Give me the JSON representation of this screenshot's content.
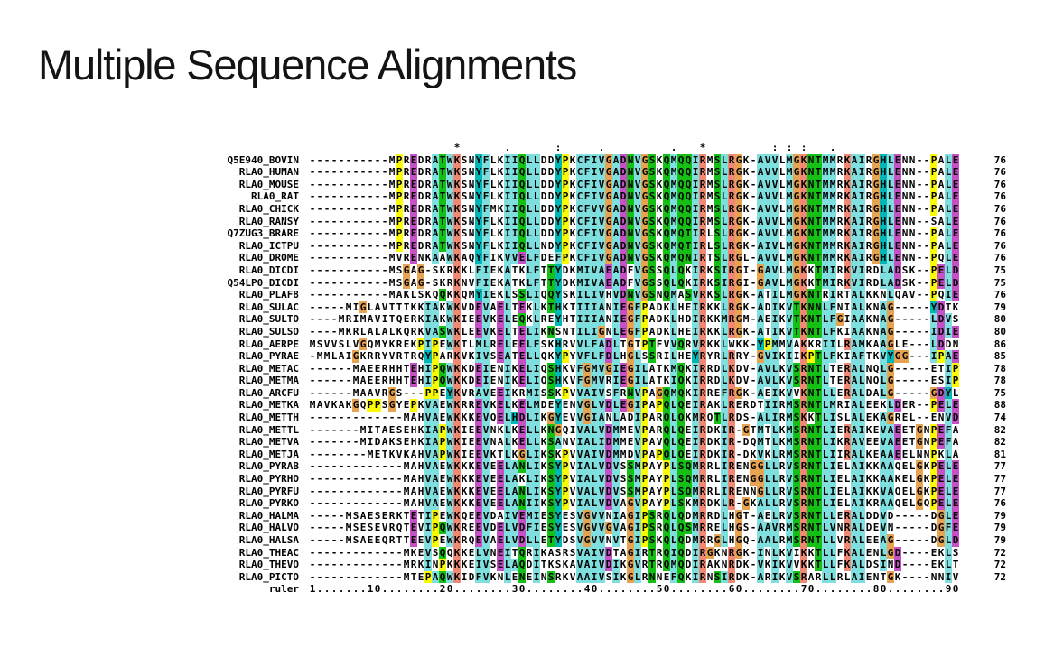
{
  "title": "Multiple Sequence Alignments",
  "alignment": {
    "columns": 90,
    "consensus_line": "                    *      .      :     .         .   *         : : :   .                 ",
    "ruler_label": "ruler",
    "ruler_line": "1.......10........20........30........40........50........60........70........80........90",
    "palette": {
      "hydrophobic": "#7FDFDF",
      "aromatic": "#00B7B7",
      "positive": "#F08873",
      "negative": "#C750C7",
      "polar": "#15C015",
      "glycine": "#E8A351",
      "proline": "#FCFC00",
      "text": "#000000"
    },
    "thresholds": {
      "hydrophobic": 0.5,
      "positive": 0.65,
      "negative": 0.4,
      "polar": 0.4
    },
    "rows": [
      {
        "name": "Q5E940_BOVIN",
        "seq": "-----------MPREDRATWKSNYFLKIIQLLDDYPKCFIVGADNVGSKQMQQIRMSLRGK-AVVLMGKNTMMRKAIRGHLENN--PALE",
        "count": "76"
      },
      {
        "name": "RLA0_HUMAN",
        "seq": "-----------MPREDRATWKSNYFLKIIQLLDDYPKCFIVGADNVGSKQMQQIRMSLRGK-AVVLMGKNTMMRKAIRGHLENN--PALE",
        "count": "76"
      },
      {
        "name": "RLA0_MOUSE",
        "seq": "-----------MPREDRATWKSNYFLKIIQLLDDYPKCFIVGADNVGSKQMQQIRMSLRGK-AVVLMGKNTMMRKAIRGHLENN--PALE",
        "count": "76"
      },
      {
        "name": "RLA0_RAT",
        "seq": "-----------MPREDRATWKSNYFLKIIQLLDDYPKCFIVGADNVGSKQMQQIRMSLRGK-AVVLMGKNTMMRKAIRGHLENN--PALE",
        "count": "76"
      },
      {
        "name": "RLA0_CHICK",
        "seq": "-----------MPREDRATWKSNYFMKIIQLLDDYPKCFVVGADNVGSKQMQQIRMSLRGK-AVVLMGKNTMMRKAIRGHLENN--PALE",
        "count": "76"
      },
      {
        "name": "RLA0_RANSY",
        "seq": "-----------MPREDRATWKSNYFLKIIQLLDDYPKCFIVGADNVGSKQMQQIRMSLRGK-AVVLMGKNTMMRKAIRGHLENN--SALE",
        "count": "76"
      },
      {
        "name": "Q7ZUG3_BRARE",
        "seq": "-----------MPREDRATWKSNYFLKIIQLLDDYPKCFIVGADNVGSKQMQTIRLSLRGK-AVVLMGKNTMMRKAIRGHLENN--PALE",
        "count": "76"
      },
      {
        "name": "RLA0_ICTPU",
        "seq": "-----------MPREDRATWKSNYFLKIIQLLNDYPKCFIVGADNVGSKQMQTIRLSLRGK-AIVLMGKNTMMRKAIRGHLENN--PALE",
        "count": "76"
      },
      {
        "name": "RLA0_DROME",
        "seq": "-----------MVRENKAAWKAQYFIKVVELFDEFPKCFIVGADNVGSKQMQNIRTSLRGL-AVVLMGKNTMMRKAIRGHLENN--PQLE",
        "count": "76"
      },
      {
        "name": "RLA0_DICDI",
        "seq": "-----------MSGAG-SKRKKLFIEKATKLFTTYDKMIVAEADFVGSSQLQKIRKSIRGI-GAVLMGKKTMIRKVIRDLADSK--PELD",
        "count": "75"
      },
      {
        "name": "Q54LP0_DICDI",
        "seq": "-----------MSGAG-SKRKNVFIEKATKLFTTYDKMIVAEADFVGSSQLQKIRKSIRGI-GAVLMGKKTMIRKVIRDLADSK--PELD",
        "count": "75"
      },
      {
        "name": "RLA0_PLAF8",
        "seq": "-----------MAKLSKQQKKQMYIEKLSSLIQQYSKILIVHVDNVGSNQMASVRKSLRGK-ATILMGKNTRIRTALKKNLQAV--PQIE",
        "count": "76"
      },
      {
        "name": "RLA0_SULAC",
        "seq": "-----MIGLAVTTTKKIAKWKVDEVAELTEKLKTHKTIIIANIEGFPADKLHEIRKKLRGK-ADIKVTKNNLFNIALKNAG-----YDTK",
        "count": "79"
      },
      {
        "name": "RLA0_SULTO",
        "seq": "----MRIMAVITQERKIAKWKIEEVKELEQKLREYHTIIIANIEGFPADKLHDIRKKMRGM-AEIKVTKNTLFGIAAKNAG-----LDVS",
        "count": "80"
      },
      {
        "name": "RLA0_SULSO",
        "seq": "----MKRLALALKQRKVASWKLEEVKELTELIKNSNTILIGNLEGFPADKLHEIRKKLRGK-ATIKVTKNTLFKIAAKNAG-----IDIE",
        "count": "80"
      },
      {
        "name": "RLA0_AERPE",
        "seq": "MSVVSLVGQMYKREKPIPEWKTLMLRELEELFSKHRVVLFADLTGTPTFVVQRVRKKLWKK-YPMMVAKKRIILRAMKAAGLE---LDDN",
        "count": "86"
      },
      {
        "name": "RLA0_PYRAE",
        "seq": "-MMLAIGKRRYVRTRQYPARKVKIVSEATELLQKYPYVFLFDLHGLSSRILHEYRYRLRRY-GVIKIIKPTLFKIAFTKVYGG---IPAE",
        "count": "85"
      },
      {
        "name": "RLA0_METAC",
        "seq": "------MAEERHHTEHIPQWKKDEIENIKELIQSHKVFGMVGIEGILATKMQKIRRDLKDV-AVLKVSRNTLTERALNQLG-----ETIP",
        "count": "78"
      },
      {
        "name": "RLA0_METMA",
        "seq": "------MAEERHHTEHIPQWKKDEIENIKELIQSHKVFGMVRIEGILATKIQKIRRDLKDV-AVLKVSRNTLTERALNQLG-----ESIP",
        "count": "78"
      },
      {
        "name": "RLA0_ARCFU",
        "seq": "------MAAVRGS---PPEYKVRAVEEIKRMISSKPVVAIVSFRNVPAGQMQKIRREFRGK-AEIKVVKNTLLERALDALG-----GDYL",
        "count": "75"
      },
      {
        "name": "RLA0_METKA",
        "seq": "MAVKAKGQPPSGYEPKVAEWKRREVKELKELMDEYENVGLVDLEGIPAPQLQEIRAKLRERDTIIRMSRNTLMRIALEEKLDER--PELE",
        "count": "88"
      },
      {
        "name": "RLA0_METTH",
        "seq": "-------------MAHVAEWKKKEVQELHDLIKGYEVVGIANLADIPARQLQKMRQTLRDS-ALIRMSKKTLISLALEKAGREL--ENVD",
        "count": "74"
      },
      {
        "name": "RLA0_METTL",
        "seq": "-------MITAESEHKIAPWKIEEVNKLKELLKNGQIVALVDMMEVPARQLQEIRDKIR-GTMTLKMSRNTLIERAIKEVAEETGNPEFA",
        "count": "82"
      },
      {
        "name": "RLA0_METVA",
        "seq": "-------MIDAKSEHKIAPWKIEEVNALKELLKSANVIALIDMMEVPAVQLQEIRDKIR-DQMTLKMSRNTLIKRAVEEVAEETGNPEFA",
        "count": "82"
      },
      {
        "name": "RLA0_METJA",
        "seq": "--------METKVKAHVAPWKIEEVKTLKGLIKSKPVVAIVDMMDVPAPQLQEIRDKIR-DKVKLRMSRNTLIIRALKEAAEELNNPKLA",
        "count": "81"
      },
      {
        "name": "RLA0_PYRAB",
        "seq": "-------------MAHVAEWKKKEVEELANLIKSYPVIALVDVSSMPAYPLSQMRRLIRENGGLLRVSRNTLIELAIKKAAQELGKPELE",
        "count": "77"
      },
      {
        "name": "RLA0_PYRHO",
        "seq": "-------------MAHVAEWKKKEVEELAKLIKSYPVIALVDVSSMPAYPLSQMRRLIRENGGLLRVSRNTLIELAIKKAAKELGKPELE",
        "count": "77"
      },
      {
        "name": "RLA0_PYRFU",
        "seq": "-------------MAHVAEWKKKEVEELANLIKSYPVVALVDVSSMPAYPLSQMRRLIRENNGLLRVSRNTLIELAIKKVAQELGKPELE",
        "count": "77"
      },
      {
        "name": "RLA0_PYRKO",
        "seq": "-------------MAHVAEWKKKEVEELANIIKSYPVIALVDVAGVPAYPLSKMRDKLR-GKALLRVSRNTLIELAIKRAAQELGQPELE",
        "count": "76"
      },
      {
        "name": "RLA0_HALMA",
        "seq": "-----MSAESERKTETIPEWKQEEVDAIVEMIESYESVGVVNIAGIPSRQLQDMRRDLHGT-AELRVSRNTLLERALDDVD-----DGLE",
        "count": "79"
      },
      {
        "name": "RLA0_HALVO",
        "seq": "-----MSESEVRQTEVIPQWKREEVDELVDFIESYESVGVVGVAGIPSRQLQSMRRELHGS-AAVRMSRNTLVNRALDEVN-----DGFE",
        "count": "79"
      },
      {
        "name": "RLA0_HALSA",
        "seq": "-----MSAEEQRTTEEVPEWKRQEVAELVDLLETYDSVGVVNVTGIPSKQLQDMRRGLHGQ-AALRMSRNTLLVRALEEAG-----DGLD",
        "count": "79"
      },
      {
        "name": "RLA0_THEAC",
        "seq": "-------------MKEVSQQKKELVNEITQRIKASRSVAIVDTAGIRTRQIQDIRGKNRGK-INLKVIKKTLLFKALENLGD----EKLS",
        "count": "72"
      },
      {
        "name": "RLA0_THEVO",
        "seq": "-------------MRKINPKKKEIVSELAQDITKSKAVAIVDIKGVRTRQMQDIRAKNRDK-VKIKVVKKTLLFKALDSIND----EKLT",
        "count": "72"
      },
      {
        "name": "RLA0_PICTO",
        "seq": "-------------MTEPAQWKIDFVKNLENEINSRKVAAIVSIKGLRNNEFQKIRNSIRDK-ARIKVSRARLLRLAIENTGK----NNIV",
        "count": "72"
      }
    ]
  }
}
